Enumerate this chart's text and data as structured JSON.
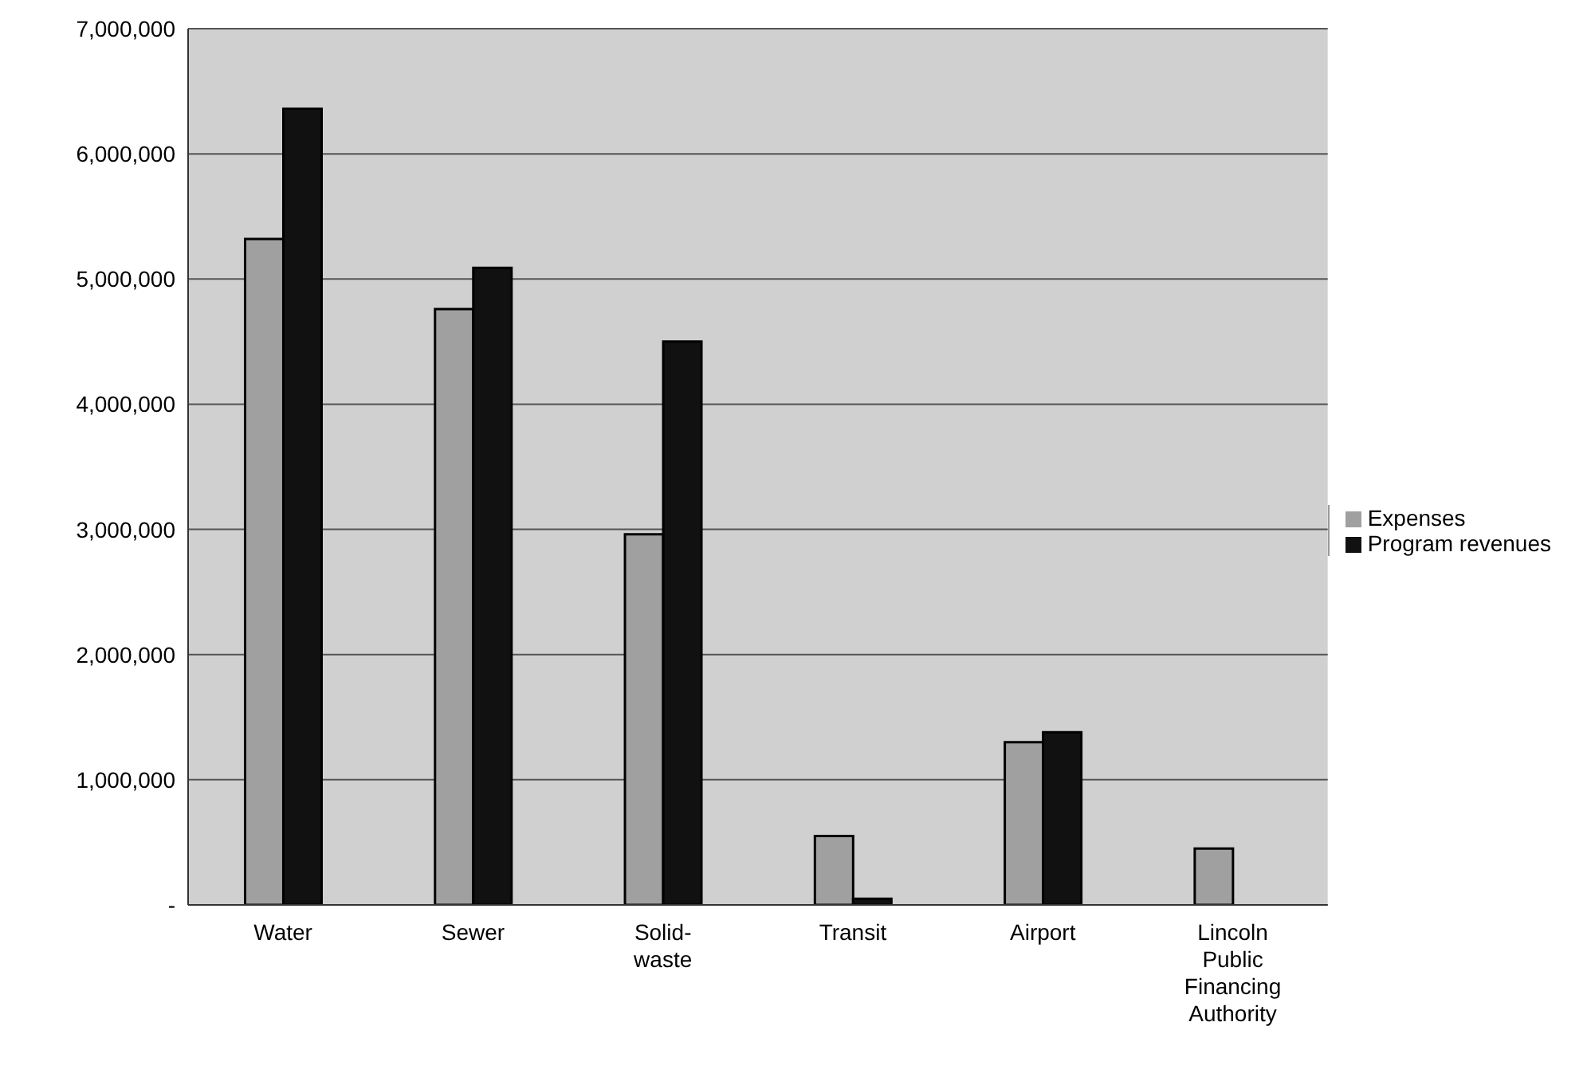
{
  "chart_data": {
    "type": "bar",
    "categories": [
      "Water",
      "Sewer",
      "Solid-waste",
      "Transit",
      "Airport",
      "Lincoln Public Financing Authority"
    ],
    "series": [
      {
        "name": "Expenses",
        "color": "#a0a0a0",
        "values": [
          5320000,
          4760000,
          2960000,
          550000,
          1300000,
          450000
        ]
      },
      {
        "name": "Program revenues",
        "color": "#111111",
        "values": [
          6360000,
          5090000,
          4500000,
          50000,
          1380000,
          0
        ]
      }
    ],
    "ylim": [
      0,
      7000000
    ],
    "yticks": [
      {
        "value": 0,
        "label": "-"
      },
      {
        "value": 1000000,
        "label": "1,000,000"
      },
      {
        "value": 2000000,
        "label": "2,000,000"
      },
      {
        "value": 3000000,
        "label": "3,000,000"
      },
      {
        "value": 4000000,
        "label": "4,000,000"
      },
      {
        "value": 5000000,
        "label": "5,000,000"
      },
      {
        "value": 6000000,
        "label": "6,000,000"
      },
      {
        "value": 7000000,
        "label": "7,000,000"
      }
    ],
    "grid": "y",
    "legend": "right"
  }
}
